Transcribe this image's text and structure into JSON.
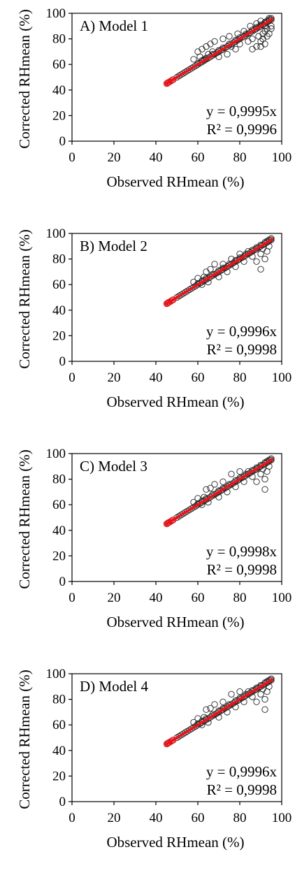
{
  "panels": [
    {
      "panel_label": "A) Model 1",
      "equation": "y = 0,9995x",
      "r_squared": "R² = 0,9996",
      "xlabel": "Observed RHmean (%)",
      "ylabel": "Corrected RHmean (%)",
      "x_ticks": [
        "0",
        "20",
        "40",
        "60",
        "80",
        "100"
      ],
      "y_ticks": [
        "0",
        "20",
        "40",
        "60",
        "80",
        "100"
      ]
    },
    {
      "panel_label": "B) Model 2",
      "equation": "y = 0,9996x",
      "r_squared": "R² = 0,9998",
      "xlabel": "Observed RHmean (%)",
      "ylabel": "Corrected RHmean (%)",
      "x_ticks": [
        "0",
        "20",
        "40",
        "60",
        "80",
        "100"
      ],
      "y_ticks": [
        "0",
        "20",
        "40",
        "60",
        "80",
        "100"
      ]
    },
    {
      "panel_label": "C) Model 3",
      "equation": "y = 0,9998x",
      "r_squared": "R² = 0,9998",
      "xlabel": "Observed RHmean (%)",
      "ylabel": "Corrected RHmean (%)",
      "x_ticks": [
        "0",
        "20",
        "40",
        "60",
        "80",
        "100"
      ],
      "y_ticks": [
        "0",
        "20",
        "40",
        "60",
        "80",
        "100"
      ]
    },
    {
      "panel_label": "D) Model 4",
      "equation": "y = 0,9996x",
      "r_squared": "R² = 0,9998",
      "xlabel": "Observed RHmean (%)",
      "ylabel": "Corrected RHmean (%)",
      "x_ticks": [
        "0",
        "20",
        "40",
        "60",
        "80",
        "100"
      ],
      "y_ticks": [
        "0",
        "20",
        "40",
        "60",
        "80",
        "100"
      ]
    }
  ],
  "chart_data": [
    {
      "type": "scatter",
      "panel": "A) Model 1",
      "xlabel": "Observed RHmean (%)",
      "ylabel": "Corrected RHmean (%)",
      "xlim": [
        0,
        100
      ],
      "ylim": [
        0,
        100
      ],
      "trendline": {
        "slope": 0.9995,
        "equation": "y = 0,9995x",
        "r2": "R² = 0,9996",
        "color": "#e8141b"
      },
      "marker_color": "#222222",
      "highlight_points": {
        "x": [
          45.2,
          45.6,
          46.5,
          47.3,
          48.2
        ],
        "y": [
          45.1,
          45.5,
          46.4,
          47.2,
          48.1
        ],
        "color": "#e8141b"
      },
      "series": [
        {
          "x": [
            46,
            48,
            50,
            51,
            52,
            53,
            54,
            55,
            56,
            57,
            58,
            59,
            60,
            60,
            61,
            62,
            62,
            63,
            64,
            64,
            65,
            66,
            67,
            67,
            68,
            69,
            70,
            70,
            71,
            72,
            72,
            73,
            74,
            75,
            75,
            76,
            77,
            78,
            78,
            79,
            80,
            80,
            81,
            82,
            83,
            83,
            84,
            85,
            86,
            86,
            87,
            88,
            88,
            89,
            90,
            90,
            91,
            92,
            92,
            93,
            93,
            94,
            94,
            95,
            95,
            58,
            60,
            61,
            62,
            63,
            64,
            65,
            66,
            67,
            68,
            70,
            72,
            74,
            75,
            76,
            78,
            79,
            80,
            82,
            84,
            85,
            86,
            88,
            89,
            90,
            91,
            92,
            93,
            94,
            95,
            86,
            88,
            90,
            91,
            92,
            93,
            94,
            95,
            90,
            92
          ],
          "y": [
            46,
            48,
            50,
            51,
            52,
            53,
            54,
            55,
            56,
            57,
            58,
            59,
            60,
            61,
            61,
            62,
            63,
            63,
            64,
            65,
            65,
            66,
            67,
            68,
            68,
            69,
            70,
            71,
            71,
            72,
            73,
            73,
            74,
            75,
            76,
            76,
            77,
            78,
            79,
            79,
            80,
            81,
            81,
            82,
            83,
            84,
            84,
            85,
            86,
            87,
            87,
            88,
            89,
            89,
            90,
            91,
            91,
            92,
            93,
            93,
            94,
            94,
            95,
            95,
            96,
            64,
            70,
            66,
            72,
            64,
            74,
            68,
            76,
            70,
            78,
            66,
            80,
            68,
            82,
            74,
            72,
            84,
            76,
            86,
            78,
            90,
            80,
            92,
            82,
            94,
            84,
            86,
            88,
            96,
            90,
            72,
            74,
            78,
            80,
            76,
            82,
            84,
            88,
            74,
            90
          ]
        }
      ]
    },
    {
      "type": "scatter",
      "panel": "B) Model 2",
      "xlabel": "Observed RHmean (%)",
      "ylabel": "Corrected RHmean (%)",
      "xlim": [
        0,
        100
      ],
      "ylim": [
        0,
        100
      ],
      "trendline": {
        "slope": 0.9996,
        "equation": "y = 0,9996x",
        "r2": "R² = 0,9998",
        "color": "#e8141b"
      },
      "marker_color": "#222222",
      "highlight_points": {
        "x": [
          45.2,
          45.6,
          46.5,
          47.3,
          48.2
        ],
        "y": [
          45.1,
          45.5,
          46.4,
          47.2,
          48.1
        ],
        "color": "#e8141b"
      },
      "series": [
        {
          "x": [
            46,
            48,
            50,
            51,
            52,
            53,
            54,
            55,
            56,
            57,
            58,
            59,
            60,
            60,
            61,
            62,
            62,
            63,
            64,
            64,
            65,
            66,
            67,
            67,
            68,
            69,
            70,
            70,
            71,
            72,
            72,
            73,
            74,
            75,
            75,
            76,
            77,
            78,
            78,
            79,
            80,
            80,
            81,
            82,
            83,
            83,
            84,
            85,
            86,
            86,
            87,
            88,
            88,
            89,
            90,
            90,
            91,
            92,
            92,
            93,
            93,
            94,
            94,
            95,
            95,
            58,
            60,
            62,
            63,
            64,
            65,
            66,
            68,
            70,
            72,
            74,
            76,
            78,
            80,
            82,
            84,
            86,
            88,
            90,
            91,
            92,
            93,
            94,
            88,
            90
          ],
          "y": [
            46,
            48,
            50,
            51,
            52,
            53,
            54,
            55,
            56,
            57,
            58,
            59,
            60,
            61,
            61,
            62,
            63,
            63,
            64,
            65,
            65,
            66,
            67,
            68,
            68,
            69,
            70,
            71,
            71,
            72,
            73,
            73,
            74,
            75,
            76,
            76,
            77,
            78,
            79,
            79,
            80,
            81,
            81,
            82,
            83,
            84,
            84,
            85,
            86,
            87,
            87,
            88,
            89,
            89,
            90,
            91,
            91,
            92,
            93,
            93,
            94,
            94,
            95,
            95,
            96,
            62,
            65,
            60,
            66,
            70,
            62,
            72,
            76,
            66,
            76,
            70,
            80,
            74,
            84,
            78,
            86,
            82,
            88,
            84,
            88,
            80,
            86,
            90,
            78,
            72
          ]
        }
      ]
    },
    {
      "type": "scatter",
      "panel": "C) Model 3",
      "xlabel": "Observed RHmean (%)",
      "ylabel": "Corrected RHmean (%)",
      "xlim": [
        0,
        100
      ],
      "ylim": [
        0,
        100
      ],
      "trendline": {
        "slope": 0.9998,
        "equation": "y = 0,9998x",
        "r2": "R² = 0,9998",
        "color": "#e8141b"
      },
      "marker_color": "#222222",
      "highlight_points": {
        "x": [
          45.2,
          45.6,
          46.5,
          47.3,
          48.2
        ],
        "y": [
          45.1,
          45.5,
          46.4,
          47.2,
          48.1
        ],
        "color": "#e8141b"
      },
      "series": [
        {
          "x": [
            46,
            48,
            50,
            51,
            52,
            53,
            54,
            55,
            56,
            57,
            58,
            59,
            60,
            60,
            61,
            62,
            62,
            63,
            64,
            64,
            65,
            66,
            67,
            67,
            68,
            69,
            70,
            70,
            71,
            72,
            72,
            73,
            74,
            75,
            75,
            76,
            77,
            78,
            78,
            79,
            80,
            80,
            81,
            82,
            83,
            83,
            84,
            85,
            86,
            86,
            87,
            88,
            88,
            89,
            90,
            90,
            91,
            92,
            92,
            93,
            93,
            94,
            94,
            95,
            95,
            58,
            60,
            62,
            63,
            64,
            65,
            66,
            68,
            70,
            72,
            74,
            76,
            78,
            80,
            82,
            84,
            86,
            88,
            90,
            91,
            92,
            93,
            94,
            88,
            92
          ],
          "y": [
            46,
            48,
            50,
            51,
            52,
            53,
            54,
            55,
            56,
            57,
            58,
            59,
            60,
            61,
            61,
            62,
            63,
            63,
            64,
            65,
            65,
            66,
            67,
            68,
            68,
            69,
            70,
            71,
            71,
            72,
            73,
            73,
            74,
            75,
            76,
            76,
            77,
            78,
            79,
            79,
            80,
            81,
            81,
            82,
            83,
            84,
            84,
            85,
            86,
            87,
            87,
            88,
            89,
            89,
            90,
            91,
            91,
            92,
            93,
            93,
            94,
            94,
            95,
            95,
            96,
            62,
            65,
            60,
            66,
            72,
            62,
            73,
            76,
            66,
            78,
            70,
            84,
            74,
            86,
            78,
            86,
            82,
            88,
            84,
            88,
            80,
            86,
            90,
            78,
            72
          ]
        }
      ]
    },
    {
      "type": "scatter",
      "panel": "D) Model 4",
      "xlabel": "Observed RHmean (%)",
      "ylabel": "Corrected RHmean (%)",
      "xlim": [
        0,
        100
      ],
      "ylim": [
        0,
        100
      ],
      "trendline": {
        "slope": 0.9996,
        "equation": "y = 0,9996x",
        "r2": "R² = 0,9998",
        "color": "#e8141b"
      },
      "marker_color": "#222222",
      "highlight_points": {
        "x": [
          45.2,
          45.6,
          46.5,
          47.3,
          48.2
        ],
        "y": [
          45.1,
          45.5,
          46.4,
          47.2,
          48.1
        ],
        "color": "#e8141b"
      },
      "series": [
        {
          "x": [
            46,
            48,
            50,
            51,
            52,
            53,
            54,
            55,
            56,
            57,
            58,
            59,
            60,
            60,
            61,
            62,
            62,
            63,
            64,
            64,
            65,
            66,
            67,
            67,
            68,
            69,
            70,
            70,
            71,
            72,
            72,
            73,
            74,
            75,
            75,
            76,
            77,
            78,
            78,
            79,
            80,
            80,
            81,
            82,
            83,
            83,
            84,
            85,
            86,
            86,
            87,
            88,
            88,
            89,
            90,
            90,
            91,
            92,
            92,
            93,
            93,
            94,
            94,
            95,
            95,
            58,
            60,
            62,
            63,
            64,
            65,
            66,
            68,
            70,
            72,
            74,
            76,
            78,
            80,
            82,
            84,
            86,
            88,
            90,
            91,
            92,
            93,
            94,
            88,
            92
          ],
          "y": [
            46,
            48,
            50,
            51,
            52,
            53,
            54,
            55,
            56,
            57,
            58,
            59,
            60,
            61,
            61,
            62,
            63,
            63,
            64,
            65,
            65,
            66,
            67,
            68,
            68,
            69,
            70,
            71,
            71,
            72,
            73,
            73,
            74,
            75,
            76,
            76,
            77,
            78,
            79,
            79,
            80,
            81,
            81,
            82,
            83,
            84,
            84,
            85,
            86,
            87,
            87,
            88,
            89,
            89,
            90,
            91,
            91,
            92,
            93,
            93,
            94,
            94,
            95,
            95,
            96,
            62,
            65,
            60,
            66,
            72,
            62,
            73,
            76,
            66,
            78,
            70,
            84,
            74,
            86,
            78,
            86,
            82,
            88,
            84,
            88,
            80,
            86,
            90,
            78,
            72
          ]
        }
      ]
    }
  ]
}
